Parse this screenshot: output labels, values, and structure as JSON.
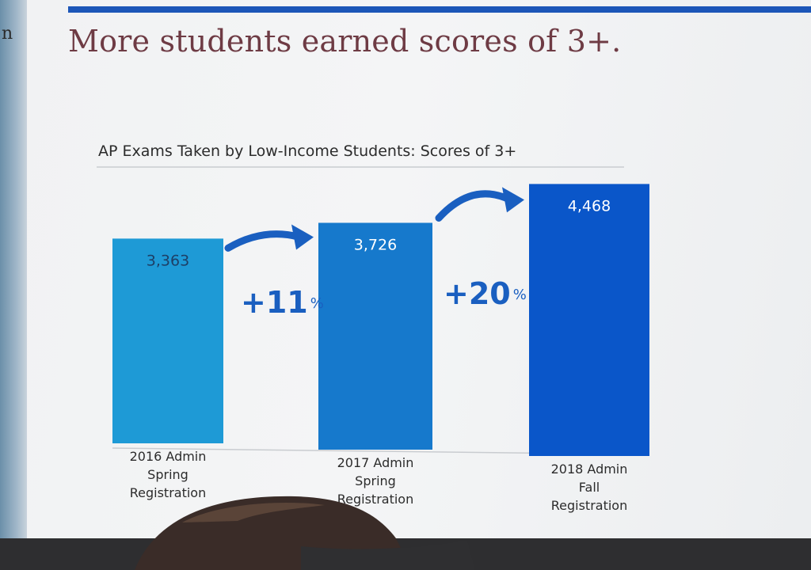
{
  "slide": {
    "left_edge_text": "n",
    "title": "More students earned scores of 3+."
  },
  "chart_data": {
    "type": "bar",
    "title": "AP Exams Taken by Low-Income Students: Scores of 3+",
    "categories": [
      [
        "2016 Admin",
        "Spring",
        "Registration"
      ],
      [
        "2017 Admin",
        "Spring",
        "Registration"
      ],
      [
        "2018 Admin",
        "Fall",
        "Registration"
      ]
    ],
    "values": [
      3363,
      3726,
      4468
    ],
    "value_labels": [
      "3,363",
      "3,726",
      "4,468"
    ],
    "bar_colors": [
      "#1e9ad6",
      "#1679cc",
      "#0a56c9"
    ],
    "value_label_colors": [
      "#1d3f66",
      "#ffffff",
      "#ffffff"
    ],
    "growth": [
      {
        "number": "+11",
        "unit": "%"
      },
      {
        "number": "+20",
        "unit": "%"
      }
    ],
    "annotation_color": "#1a5fc0",
    "ylim": [
      0,
      4600
    ],
    "grid": false,
    "legend": "none"
  }
}
